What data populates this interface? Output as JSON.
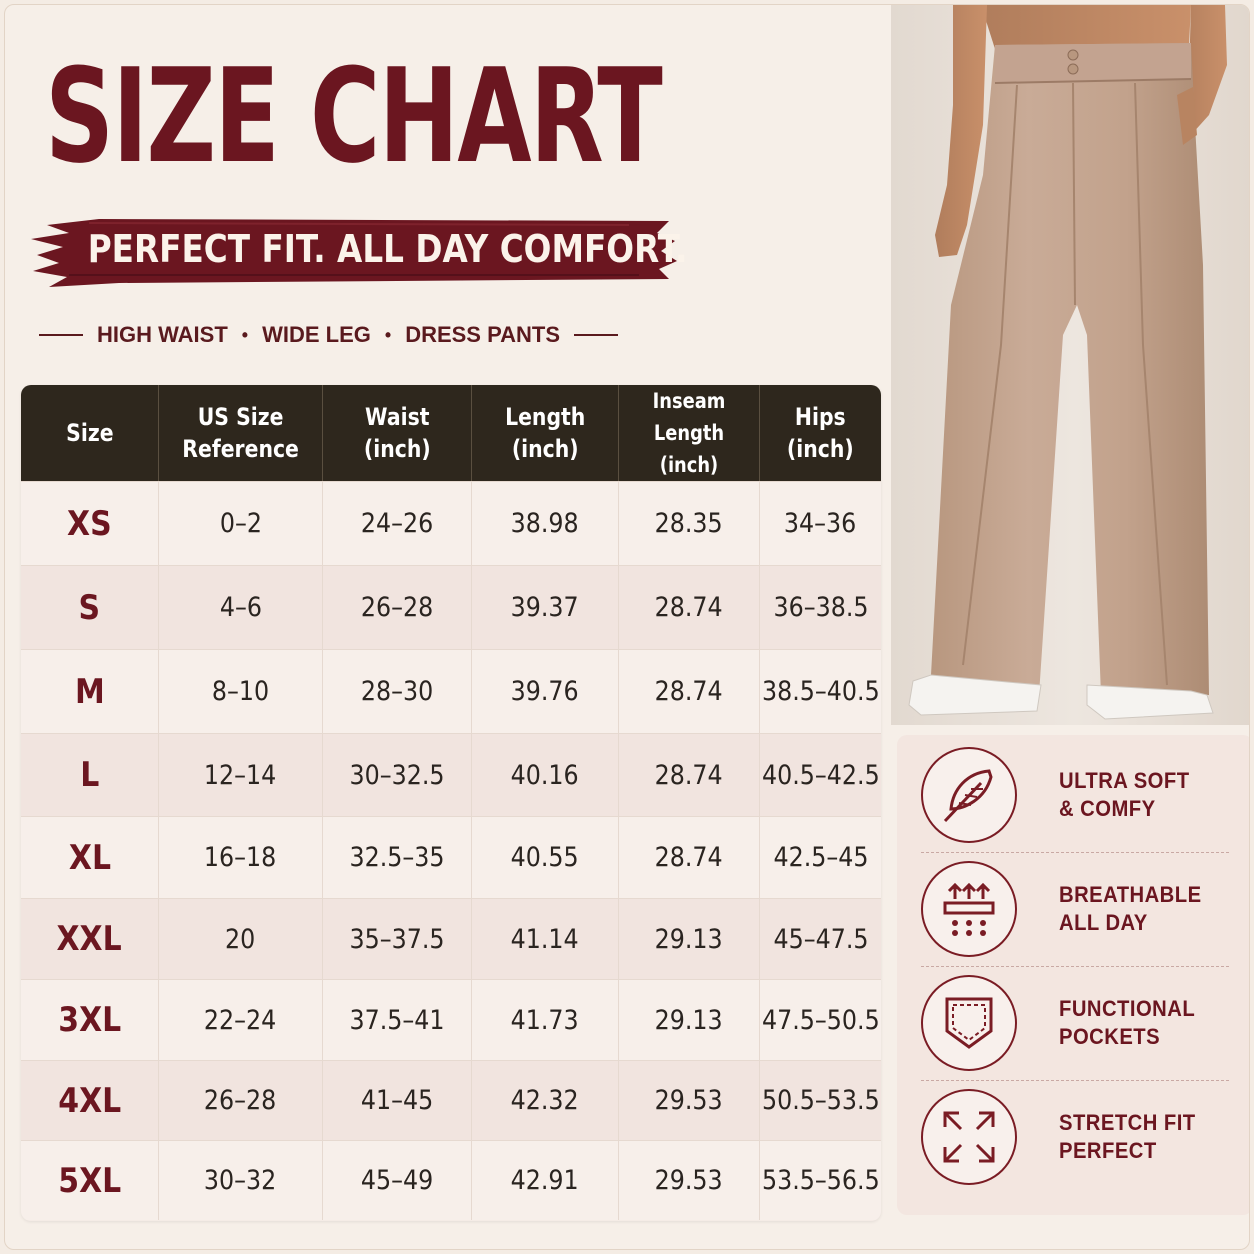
{
  "title": "SIZE CHART",
  "tagline": "PERFECT FIT. ALL DAY COMFORT.",
  "subline": [
    "HIGH WAIST",
    "WIDE LEG",
    "DRESS PANTS"
  ],
  "subline_separator": "•",
  "colors": {
    "brand": "#6b1620",
    "header_bg": "#2e271d",
    "background": "#f6efe8",
    "pants": "#c4a592"
  },
  "table": {
    "headers": [
      "Size",
      "US Size\nReference",
      "Waist\n(inch)",
      "Length\n(inch)",
      "Inseam Length\n(inch)",
      "Hips\n(inch)"
    ],
    "rows": [
      [
        "XS",
        "0–2",
        "24–26",
        "38.98",
        "28.35",
        "34–36"
      ],
      [
        "S",
        "4–6",
        "26–28",
        "39.37",
        "28.74",
        "36–38.5"
      ],
      [
        "M",
        "8–10",
        "28–30",
        "39.76",
        "28.74",
        "38.5–40.5"
      ],
      [
        "L",
        "12–14",
        "30–32.5",
        "40.16",
        "28.74",
        "40.5–42.5"
      ],
      [
        "XL",
        "16–18",
        "32.5–35",
        "40.55",
        "28.74",
        "42.5–45"
      ],
      [
        "XXL",
        "20",
        "35–37.5",
        "41.14",
        "29.13",
        "45–47.5"
      ],
      [
        "3XL",
        "22–24",
        "37.5–41",
        "41.73",
        "29.13",
        "47.5–50.5"
      ],
      [
        "4XL",
        "26–28",
        "41–45",
        "42.32",
        "29.53",
        "50.5–53.5"
      ],
      [
        "5XL",
        "30–32",
        "45–49",
        "42.91",
        "29.53",
        "53.5–56.5"
      ]
    ]
  },
  "features": [
    {
      "icon": "feather-icon",
      "lines": [
        "ULTRA SOFT",
        "& COMFY"
      ]
    },
    {
      "icon": "breathable-fabric-icon",
      "lines": [
        "BREATHABLE",
        "ALL DAY"
      ]
    },
    {
      "icon": "pocket-icon",
      "lines": [
        "FUNCTIONAL",
        "POCKETS"
      ]
    },
    {
      "icon": "stretch-arrows-icon",
      "lines": [
        "STRETCH FIT",
        "PERFECT"
      ]
    }
  ]
}
